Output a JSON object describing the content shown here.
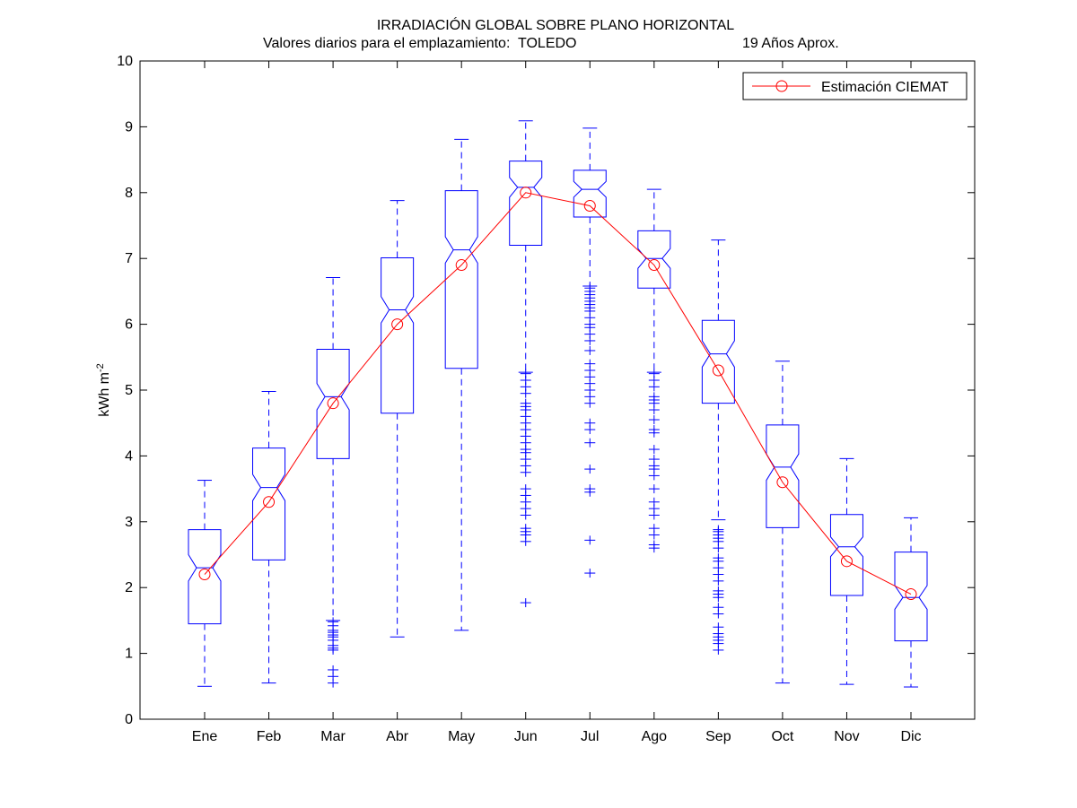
{
  "chart_data": {
    "type": "box",
    "title": "IRRADIACIÓN GLOBAL SOBRE PLANO HORIZONTAL",
    "subtitle_left": "Valores diarios para el emplazamiento:  TOLEDO",
    "subtitle_right": "19 Años Aprox.",
    "ylabel": "kWh m",
    "ylabel_sup": "-2",
    "ylim": [
      0,
      10
    ],
    "yticks": [
      0,
      1,
      2,
      3,
      4,
      5,
      6,
      7,
      8,
      9,
      10
    ],
    "categories": [
      "Ene",
      "Feb",
      "Mar",
      "Abr",
      "May",
      "Jun",
      "Jul",
      "Ago",
      "Sep",
      "Oct",
      "Nov",
      "Dic"
    ],
    "boxes": [
      {
        "q1": 1.45,
        "median": 2.3,
        "q3": 2.88,
        "lower_whisker": 0.5,
        "upper_whisker": 3.63,
        "notch": [
          2.1,
          2.5
        ],
        "outliers": []
      },
      {
        "q1": 2.42,
        "median": 3.52,
        "q3": 4.12,
        "lower_whisker": 0.55,
        "upper_whisker": 4.98,
        "notch": [
          3.32,
          3.72
        ],
        "outliers": []
      },
      {
        "q1": 3.96,
        "median": 4.9,
        "q3": 5.62,
        "lower_whisker": 1.5,
        "upper_whisker": 6.71,
        "notch": [
          4.7,
          5.1
        ],
        "outliers": [
          1.48,
          1.42,
          1.35,
          1.32,
          1.28,
          1.25,
          1.2,
          1.12,
          1.08,
          1.05,
          0.75,
          0.65,
          0.55
        ]
      },
      {
        "q1": 4.65,
        "median": 6.22,
        "q3": 7.01,
        "lower_whisker": 1.25,
        "upper_whisker": 7.88,
        "notch": [
          6.02,
          6.42
        ],
        "outliers": []
      },
      {
        "q1": 5.33,
        "median": 7.13,
        "q3": 8.03,
        "lower_whisker": 1.35,
        "upper_whisker": 8.81,
        "notch": [
          6.93,
          7.33
        ],
        "outliers": []
      },
      {
        "q1": 7.2,
        "median": 8.08,
        "q3": 8.48,
        "lower_whisker": 5.27,
        "upper_whisker": 9.09,
        "notch": [
          7.93,
          8.23
        ],
        "outliers": [
          5.25,
          5.15,
          5.05,
          4.95,
          4.8,
          4.75,
          4.7,
          4.6,
          4.5,
          4.4,
          4.3,
          4.2,
          4.1,
          4.05,
          3.95,
          3.85,
          3.75,
          3.5,
          3.4,
          3.3,
          3.2,
          3.1,
          2.9,
          2.85,
          2.8,
          2.7,
          1.77
        ]
      },
      {
        "q1": 7.63,
        "median": 8.05,
        "q3": 8.34,
        "lower_whisker": 6.58,
        "upper_whisker": 8.98,
        "notch": [
          7.93,
          8.17
        ],
        "outliers": [
          6.55,
          6.5,
          6.45,
          6.4,
          6.35,
          6.3,
          6.25,
          6.2,
          6.1,
          6.0,
          5.95,
          5.85,
          5.75,
          5.6,
          5.4,
          5.3,
          5.2,
          5.1,
          5.0,
          4.9,
          4.8,
          4.5,
          4.4,
          4.2,
          3.8,
          3.5,
          3.45,
          2.72,
          2.22
        ]
      },
      {
        "q1": 6.55,
        "median": 7.0,
        "q3": 7.42,
        "lower_whisker": 5.27,
        "upper_whisker": 8.05,
        "notch": [
          6.85,
          7.15
        ],
        "outliers": [
          5.25,
          5.15,
          5.05,
          4.9,
          4.85,
          4.8,
          4.7,
          4.55,
          4.4,
          4.35,
          4.1,
          3.95,
          3.85,
          3.8,
          3.7,
          3.5,
          3.3,
          3.2,
          3.1,
          2.9,
          2.8,
          2.65,
          2.6
        ]
      },
      {
        "q1": 4.8,
        "median": 5.55,
        "q3": 6.06,
        "lower_whisker": 3.03,
        "upper_whisker": 7.28,
        "notch": [
          5.35,
          5.75
        ],
        "outliers": [
          2.88,
          2.85,
          2.8,
          2.75,
          2.7,
          2.6,
          2.45,
          2.4,
          2.3,
          2.2,
          2.1,
          1.95,
          1.9,
          1.85,
          1.7,
          1.6,
          1.4,
          1.3,
          1.25,
          1.2,
          1.15,
          1.05
        ]
      },
      {
        "q1": 2.91,
        "median": 3.83,
        "q3": 4.47,
        "lower_whisker": 0.55,
        "upper_whisker": 5.44,
        "notch": [
          3.63,
          4.03
        ],
        "outliers": []
      },
      {
        "q1": 1.88,
        "median": 2.62,
        "q3": 3.11,
        "lower_whisker": 0.53,
        "upper_whisker": 3.96,
        "notch": [
          2.47,
          2.77
        ],
        "outliers": []
      },
      {
        "q1": 1.19,
        "median": 1.85,
        "q3": 2.54,
        "lower_whisker": 0.49,
        "upper_whisker": 3.06,
        "notch": [
          1.67,
          2.03
        ],
        "outliers": []
      }
    ],
    "series": [
      {
        "name": "Estimación CIEMAT",
        "color": "#ff0000",
        "marker": "circle",
        "values": [
          2.2,
          3.3,
          4.8,
          6.0,
          6.9,
          8.0,
          7.8,
          6.9,
          5.3,
          3.6,
          2.4,
          1.9
        ]
      }
    ],
    "box_color": "#0000ff",
    "legend_position": "top-right",
    "grid": false
  }
}
